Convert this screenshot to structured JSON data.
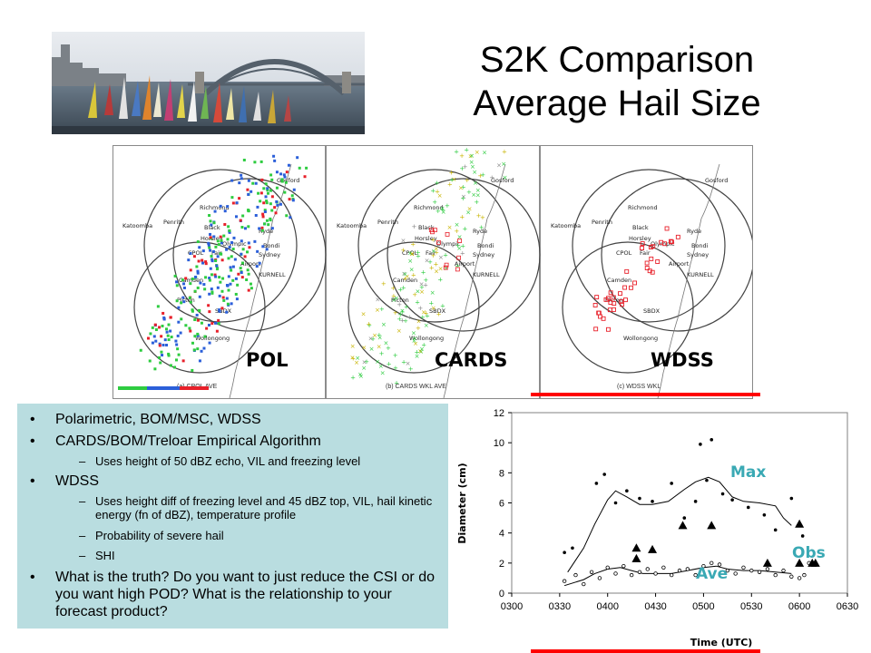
{
  "title": {
    "line1": "S2K Comparison",
    "line2": "Average Hail Size"
  },
  "panels": [
    {
      "label": "POL",
      "caption": "(a) CPOL AVE"
    },
    {
      "label": "CARDS",
      "caption": "(b) CARDS WKL AVE"
    },
    {
      "label": "WDSS",
      "caption": "(c) WDSS WKL"
    }
  ],
  "map_places": [
    "Gosford",
    "Richmond",
    "Katoomba",
    "Penrith",
    "Black",
    "Horsley",
    "Olympic",
    "Ryde",
    "Fair",
    "Bondi",
    "Sydney",
    "CPOL",
    "Airport",
    "Camden",
    "KURNELL",
    "Picton",
    "SBDX",
    "Wollongong"
  ],
  "bullets": [
    {
      "level": 1,
      "text": "Polarimetric, BOM/MSC, WDSS"
    },
    {
      "level": 1,
      "text": "CARDS/BOM/Treloar Empirical Algorithm"
    },
    {
      "level": 2,
      "text": "Uses height of 50 dBZ echo, VIL and freezing level"
    },
    {
      "level": 1,
      "text": "WDSS"
    },
    {
      "level": 2,
      "text": "Uses height diff of freezing level and 45 dBZ top, VIL, hail kinetic energy (fn of dBZ), temperature profile"
    },
    {
      "level": 2,
      "text": "Probability of severe hail"
    },
    {
      "level": 2,
      "text": "SHI"
    },
    {
      "level": 1,
      "text": "What is the truth? Do you want to just reduce the CSI or do you want high POD? What is the relationship to your forecast product?"
    }
  ],
  "colors": {
    "bullet_bg": "#b9dde0",
    "accent_red": "#ff0000",
    "label_teal": "#3aa9b4"
  },
  "chart_data": {
    "type": "scatter",
    "xlabel": "Time (UTC)",
    "ylabel": "Diameter (cm)",
    "ylim": [
      0,
      12
    ],
    "yticks": [
      0,
      2,
      4,
      6,
      8,
      10,
      12
    ],
    "xlim": [
      "0300",
      "0630"
    ],
    "xticks": [
      "0300",
      "0330",
      "0400",
      "0430",
      "0500",
      "0530",
      "0600",
      "0630"
    ],
    "annotations": [
      "Max",
      "Obs",
      "Ave"
    ],
    "series": [
      {
        "kind": "max-points",
        "points": [
          [
            "0333",
            2.7
          ],
          [
            "0338",
            3.0
          ],
          [
            "0353",
            7.3
          ],
          [
            "0358",
            7.9
          ],
          [
            "0405",
            6.0
          ],
          [
            "0412",
            6.8
          ],
          [
            "0420",
            6.3
          ],
          [
            "0428",
            6.1
          ],
          [
            "0440",
            7.3
          ],
          [
            "0448",
            5.0
          ],
          [
            "0455",
            6.1
          ],
          [
            "0458",
            9.9
          ],
          [
            "0502",
            7.5
          ],
          [
            "0505",
            10.2
          ],
          [
            "0512",
            6.6
          ],
          [
            "0518",
            6.2
          ],
          [
            "0528",
            5.7
          ],
          [
            "0538",
            5.2
          ],
          [
            "0545",
            4.2
          ],
          [
            "0555",
            6.3
          ],
          [
            "0602",
            3.8
          ]
        ]
      },
      {
        "kind": "max-curve",
        "points": [
          [
            "0335",
            1.4
          ],
          [
            "0345",
            3.0
          ],
          [
            "0352",
            4.6
          ],
          [
            "0400",
            6.2
          ],
          [
            "0405",
            6.8
          ],
          [
            "0412",
            6.4
          ],
          [
            "0420",
            5.9
          ],
          [
            "0428",
            5.9
          ],
          [
            "0438",
            6.1
          ],
          [
            "0448",
            6.9
          ],
          [
            "0455",
            7.4
          ],
          [
            "0503",
            7.7
          ],
          [
            "0510",
            7.4
          ],
          [
            "0518",
            6.4
          ],
          [
            "0525",
            6.1
          ],
          [
            "0535",
            6.0
          ],
          [
            "0545",
            5.8
          ],
          [
            "0550",
            5.0
          ],
          [
            "0555",
            4.5
          ]
        ]
      },
      {
        "kind": "ave-points",
        "points": [
          [
            "0333",
            0.8
          ],
          [
            "0340",
            1.2
          ],
          [
            "0345",
            0.6
          ],
          [
            "0350",
            1.4
          ],
          [
            "0355",
            1.0
          ],
          [
            "0400",
            1.7
          ],
          [
            "0405",
            1.3
          ],
          [
            "0410",
            1.8
          ],
          [
            "0415",
            1.2
          ],
          [
            "0420",
            1.4
          ],
          [
            "0425",
            1.6
          ],
          [
            "0430",
            1.3
          ],
          [
            "0435",
            1.7
          ],
          [
            "0440",
            1.2
          ],
          [
            "0445",
            1.5
          ],
          [
            "0450",
            1.6
          ],
          [
            "0455",
            1.2
          ],
          [
            "0500",
            1.8
          ],
          [
            "0505",
            2.0
          ],
          [
            "0510",
            1.9
          ],
          [
            "0515",
            1.5
          ],
          [
            "0520",
            1.3
          ],
          [
            "0525",
            1.7
          ],
          [
            "0530",
            1.5
          ],
          [
            "0535",
            1.4
          ],
          [
            "0540",
            1.6
          ],
          [
            "0545",
            1.2
          ],
          [
            "0550",
            1.5
          ],
          [
            "0555",
            1.1
          ],
          [
            "0600",
            1.0
          ],
          [
            "0603",
            1.2
          ],
          [
            "0606",
            2.0
          ]
        ]
      },
      {
        "kind": "ave-curve",
        "points": [
          [
            "0333",
            0.5
          ],
          [
            "0345",
            0.9
          ],
          [
            "0352",
            1.3
          ],
          [
            "0400",
            1.6
          ],
          [
            "0408",
            1.7
          ],
          [
            "0415",
            1.5
          ],
          [
            "0422",
            1.3
          ],
          [
            "0430",
            1.3
          ],
          [
            "0440",
            1.3
          ],
          [
            "0450",
            1.5
          ],
          [
            "0500",
            1.7
          ],
          [
            "0508",
            1.8
          ],
          [
            "0515",
            1.6
          ],
          [
            "0525",
            1.5
          ],
          [
            "0535",
            1.5
          ],
          [
            "0545",
            1.4
          ],
          [
            "0555",
            1.3
          ]
        ]
      },
      {
        "kind": "obs-triangles",
        "points": [
          [
            "0418",
            3.0
          ],
          [
            "0418",
            2.3
          ],
          [
            "0428",
            2.9
          ],
          [
            "0447",
            4.5
          ],
          [
            "0505",
            4.5
          ],
          [
            "0540",
            2.0
          ],
          [
            "0600",
            4.6
          ],
          [
            "0600",
            2.0
          ],
          [
            "0608",
            2.0
          ],
          [
            "0610",
            2.0
          ]
        ]
      }
    ]
  }
}
